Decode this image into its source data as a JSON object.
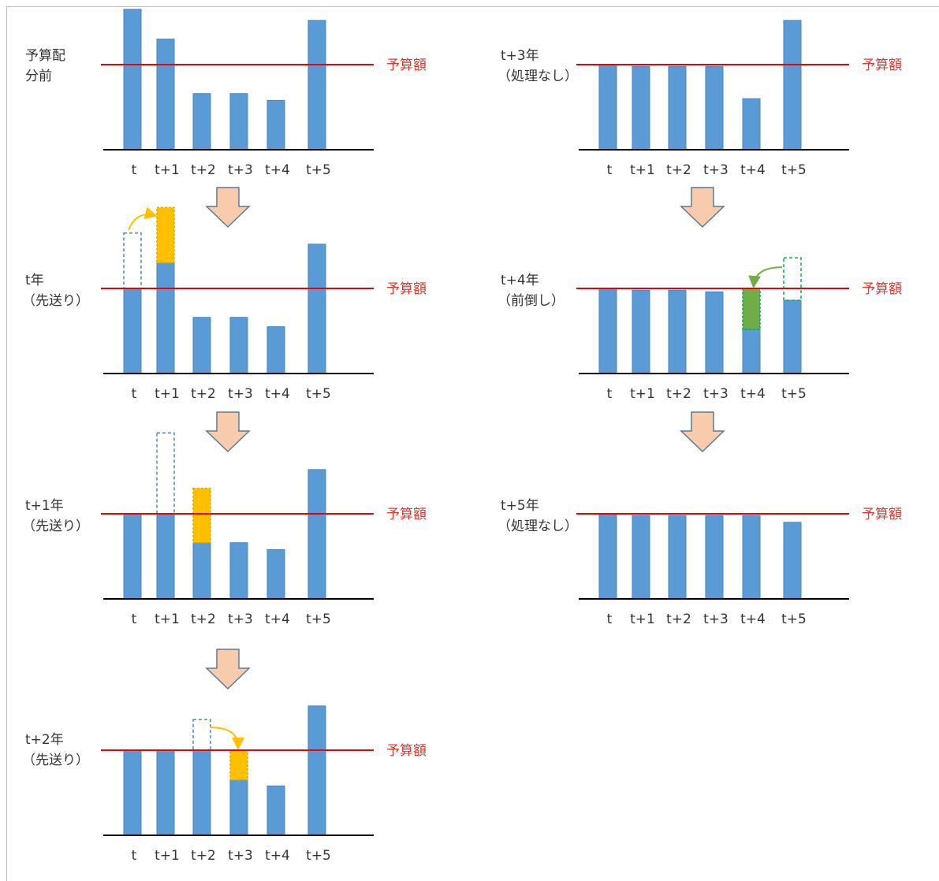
{
  "colors": {
    "bar": "#5b9bd5",
    "bar_edge": "#4a86c0",
    "budget_line": "#ee0000",
    "budget_text": "#e8332a",
    "deferred": "#ffc000",
    "advanced": "#70ad47",
    "dashed_old": "#4a86c0",
    "dashed_green": "#00b050",
    "arrow_fill": "#f8cbad",
    "arrow_stroke": "#5b7a99",
    "axis": "#000000"
  },
  "budget_label": "予算額",
  "ticks": [
    "t",
    "t+1",
    "t+2",
    "t+3",
    "t+4",
    "t+5"
  ],
  "panels": [
    {
      "id": "before",
      "label_lines": [
        "予算配",
        "分前"
      ],
      "values": [
        1.65,
        1.3,
        0.66,
        0.66,
        0.58,
        1.52
      ],
      "dashed": [],
      "stacked": []
    },
    {
      "id": "t",
      "label_lines": [
        "t年",
        "（先送り）"
      ],
      "values": [
        1.0,
        1.3,
        0.66,
        0.66,
        0.55,
        1.52
      ],
      "dashed": [
        {
          "index": 0,
          "from": 1.0,
          "to": 1.65,
          "kind": "old"
        }
      ],
      "stacked": [
        {
          "index": 1,
          "from": 1.3,
          "to": 1.95,
          "kind": "deferred"
        }
      ],
      "move": {
        "from": 0,
        "to": 1
      }
    },
    {
      "id": "t1",
      "label_lines": [
        "t+1年",
        "（先送り）"
      ],
      "values": [
        1.0,
        1.0,
        0.66,
        0.66,
        0.58,
        1.52
      ],
      "dashed": [
        {
          "index": 1,
          "from": 1.0,
          "to": 1.95,
          "kind": "old"
        }
      ],
      "stacked": [
        {
          "index": 2,
          "from": 0.66,
          "to": 1.3,
          "kind": "deferred"
        }
      ]
    },
    {
      "id": "t2",
      "label_lines": [
        "t+2年",
        "（先送り）"
      ],
      "values": [
        1.0,
        1.0,
        1.0,
        0.65,
        0.58,
        1.52
      ],
      "dashed": [
        {
          "index": 2,
          "from": 1.0,
          "to": 1.36,
          "kind": "old"
        }
      ],
      "stacked": [
        {
          "index": 3,
          "from": 0.65,
          "to": 1.0,
          "kind": "deferred"
        }
      ],
      "move": {
        "from": 2,
        "to": 3
      }
    },
    {
      "id": "t3",
      "label_lines": [
        "t+3年",
        "（処理なし）"
      ],
      "values": [
        1.0,
        0.98,
        0.98,
        0.98,
        0.6,
        1.52
      ],
      "dashed": [],
      "stacked": []
    },
    {
      "id": "t4",
      "label_lines": [
        "t+4年",
        "（前倒し）"
      ],
      "values": [
        1.0,
        0.98,
        0.98,
        0.96,
        0.52,
        0.86
      ],
      "dashed": [
        {
          "index": 5,
          "from": 0.86,
          "to": 1.36,
          "kind": "green"
        }
      ],
      "stacked": [
        {
          "index": 4,
          "from": 0.52,
          "to": 1.0,
          "kind": "advanced"
        }
      ],
      "move": {
        "from": 5,
        "to": 4
      }
    },
    {
      "id": "t5",
      "label_lines": [
        "t+5年",
        "（処理なし）"
      ],
      "values": [
        1.0,
        0.98,
        0.98,
        0.98,
        0.98,
        0.9
      ],
      "dashed": [],
      "stacked": []
    }
  ]
}
